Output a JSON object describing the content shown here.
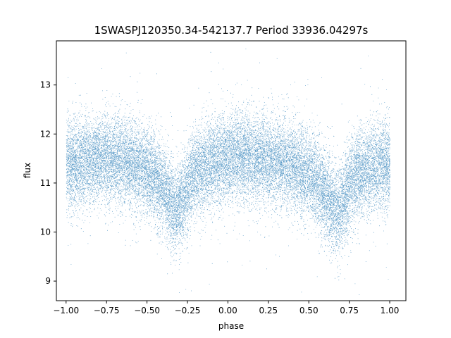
{
  "chart_data": {
    "type": "scatter",
    "title": "1SWASPJ120350.34-542137.7 Period 33936.04297s",
    "xlabel": "phase",
    "ylabel": "flux",
    "xlim": [
      -1.06,
      1.1
    ],
    "ylim": [
      8.6,
      13.9
    ],
    "xticks": [
      "−1.00",
      "−0.75",
      "−0.50",
      "−0.25",
      "0.00",
      "0.25",
      "0.50",
      "0.75",
      "1.00"
    ],
    "xtick_values": [
      -1.0,
      -0.75,
      -0.5,
      -0.25,
      0.0,
      0.25,
      0.5,
      0.75,
      1.0
    ],
    "yticks": [
      "9",
      "10",
      "11",
      "12",
      "13"
    ],
    "ytick_values": [
      9,
      10,
      11,
      12,
      13
    ],
    "grid": false,
    "point_color": "#1f77b4",
    "series": [
      {
        "profile": {
          "phase": [
            -1.0,
            -0.9,
            -0.8,
            -0.7,
            -0.6,
            -0.5,
            -0.45,
            -0.4,
            -0.35,
            -0.32,
            -0.28,
            -0.25,
            -0.2,
            -0.1,
            0.0,
            0.1,
            0.2,
            0.3,
            0.4,
            0.5,
            0.55,
            0.6,
            0.65,
            0.68,
            0.72,
            0.75,
            0.8,
            0.9,
            1.0
          ],
          "mean_flux": [
            11.35,
            11.45,
            11.5,
            11.5,
            11.4,
            11.25,
            11.1,
            10.9,
            10.6,
            10.45,
            10.65,
            10.95,
            11.25,
            11.4,
            11.5,
            11.55,
            11.5,
            11.45,
            11.35,
            11.2,
            11.0,
            10.75,
            10.5,
            10.4,
            10.65,
            10.95,
            11.2,
            11.35,
            11.4
          ]
        },
        "scatter_sigma": 0.45,
        "n_points": 26000
      }
    ]
  }
}
